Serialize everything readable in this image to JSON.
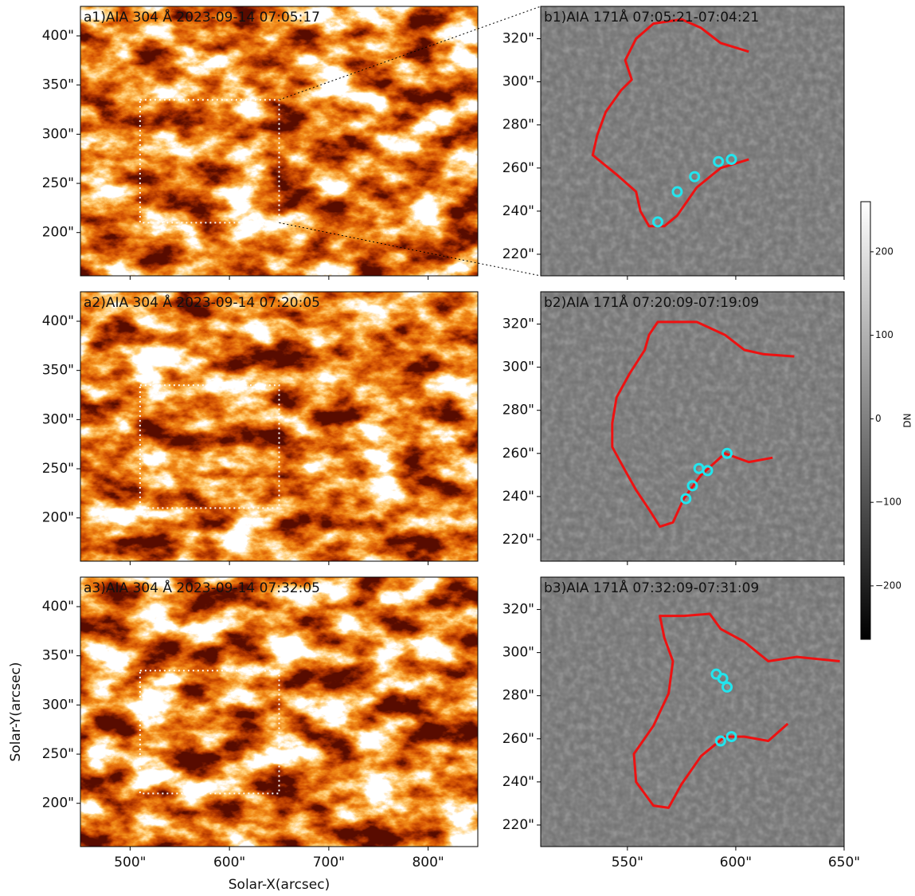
{
  "chart_data": [
    {
      "type": "image",
      "title": "a1)AIA 304 Å 2023-09-14 07:05:17",
      "cmap": "sdoaia304",
      "title_color": "#ffffff",
      "xlim": [
        450,
        850
      ],
      "ylim": [
        156,
        430
      ],
      "yticks": [
        {
          "value": 200,
          "label": "200\""
        },
        {
          "value": 250,
          "label": "250\""
        },
        {
          "value": 300,
          "label": "300\""
        },
        {
          "value": 350,
          "label": "350\""
        },
        {
          "value": 400,
          "label": "400\""
        }
      ]
    },
    {
      "type": "image",
      "title": "a2)AIA 304 Å 2023-09-14 07:20:05",
      "cmap": "sdoaia304",
      "title_color": "#ffffff",
      "xlim": [
        450,
        850
      ],
      "ylim": [
        156,
        430
      ],
      "yticks": [
        {
          "value": 200,
          "label": "200\""
        },
        {
          "value": 250,
          "label": "250\""
        },
        {
          "value": 300,
          "label": "300\""
        },
        {
          "value": 350,
          "label": "350\""
        },
        {
          "value": 400,
          "label": "400\""
        }
      ]
    },
    {
      "type": "image",
      "title": "a3)AIA 304 Å 2023-09-14 07:32:05",
      "cmap": "sdoaia304",
      "title_color": "#ffffff",
      "xlim": [
        450,
        850
      ],
      "ylim": [
        156,
        430
      ],
      "x_label": "Solar-X(arcsec)",
      "y_label": "Solar-Y(arcsec)",
      "xticks": [
        {
          "value": 500,
          "label": "500\""
        },
        {
          "value": 600,
          "label": "600\""
        },
        {
          "value": 700,
          "label": "700\""
        },
        {
          "value": 800,
          "label": "800\""
        }
      ],
      "yticks": [
        {
          "value": 200,
          "label": "200\""
        },
        {
          "value": 250,
          "label": "250\""
        },
        {
          "value": 300,
          "label": "300\""
        },
        {
          "value": 350,
          "label": "350\""
        },
        {
          "value": 400,
          "label": "400\""
        }
      ]
    },
    {
      "type": "image",
      "title": "b1)AIA 171Å 07:05:21-07:04:21",
      "cmap": "gray",
      "title_color": "#000000",
      "xlim": [
        510,
        650
      ],
      "ylim": [
        210,
        335
      ],
      "yticks": [
        {
          "value": 220,
          "label": "220\""
        },
        {
          "value": 240,
          "label": "240\""
        },
        {
          "value": 260,
          "label": "260\""
        },
        {
          "value": 280,
          "label": "280\""
        },
        {
          "value": 300,
          "label": "300\""
        },
        {
          "value": 320,
          "label": "320\""
        }
      ],
      "series": [
        {
          "type": "line",
          "color": "#ee1111",
          "x": [
            606,
            593,
            584,
            575,
            562,
            554,
            549,
            552,
            547,
            540,
            536,
            534,
            545,
            554,
            556,
            560,
            567,
            573,
            582,
            593,
            606
          ],
          "y": [
            314,
            318,
            325,
            329,
            327,
            320,
            310,
            301,
            296,
            286,
            275,
            266,
            257,
            249,
            240,
            233,
            233,
            238,
            251,
            260,
            264
          ]
        },
        {
          "type": "scatter",
          "color": "#22e5ee",
          "x": [
            564,
            573,
            581,
            592,
            598
          ],
          "y": [
            235,
            249,
            256,
            263,
            264
          ]
        }
      ]
    },
    {
      "type": "image",
      "title": "b2)AIA 171Å 07:20:09-07:19:09",
      "cmap": "gray",
      "title_color": "#000000",
      "xlim": [
        510,
        650
      ],
      "ylim": [
        210,
        335
      ],
      "yticks": [
        {
          "value": 220,
          "label": "220\""
        },
        {
          "value": 240,
          "label": "240\""
        },
        {
          "value": 260,
          "label": "260\""
        },
        {
          "value": 280,
          "label": "280\""
        },
        {
          "value": 300,
          "label": "300\""
        },
        {
          "value": 320,
          "label": "320\""
        }
      ],
      "series": [
        {
          "type": "line",
          "color": "#ee1111",
          "x": [
            627,
            613,
            604,
            595,
            582,
            564,
            560,
            558,
            551,
            545,
            543,
            543,
            549,
            554,
            560,
            565,
            571,
            576,
            584,
            595,
            606,
            617
          ],
          "y": [
            305,
            306,
            308,
            315,
            321,
            321,
            315,
            308,
            297,
            286,
            274,
            263,
            252,
            243,
            234,
            226,
            228,
            239,
            250,
            260,
            256,
            258
          ]
        },
        {
          "type": "scatter",
          "color": "#22e5ee",
          "x": [
            577,
            580,
            583,
            587,
            596
          ],
          "y": [
            239,
            245,
            253,
            252,
            260
          ]
        }
      ]
    },
    {
      "type": "image",
      "title": "b3)AIA 171Å 07:32:09-07:31:09",
      "cmap": "gray",
      "title_color": "#000000",
      "xlim": [
        510,
        650
      ],
      "ylim": [
        210,
        335
      ],
      "xticks": [
        {
          "value": 550,
          "label": "550\""
        },
        {
          "value": 600,
          "label": "600\""
        },
        {
          "value": 650,
          "label": "650\""
        }
      ],
      "yticks": [
        {
          "value": 220,
          "label": "220\""
        },
        {
          "value": 240,
          "label": "240\""
        },
        {
          "value": 260,
          "label": "260\""
        },
        {
          "value": 280,
          "label": "280\""
        },
        {
          "value": 300,
          "label": "300\""
        },
        {
          "value": 320,
          "label": "320\""
        }
      ],
      "series": [
        {
          "type": "line",
          "color": "#ee1111",
          "x": [
            648,
            628,
            615,
            604,
            593,
            588,
            576,
            565,
            567,
            571,
            569,
            562,
            553,
            554,
            562,
            569,
            575,
            584,
            595,
            604,
            615,
            624
          ],
          "y": [
            296,
            298,
            296,
            305,
            311,
            318,
            317,
            317,
            307,
            296,
            281,
            266,
            253,
            240,
            229,
            228,
            239,
            252,
            261,
            261,
            259,
            267
          ]
        },
        {
          "type": "scatter",
          "color": "#22e5ee",
          "x": [
            591,
            594,
            596,
            593,
            598
          ],
          "y": [
            290,
            288,
            284,
            259,
            261
          ]
        }
      ]
    }
  ],
  "colorbar": {
    "label": "DN",
    "clim": [
      -264,
      260
    ],
    "ticks": [
      {
        "value": 200,
        "label": "200"
      },
      {
        "value": 100,
        "label": "100"
      },
      {
        "value": 0,
        "label": "0"
      },
      {
        "value": -100,
        "label": "−100"
      },
      {
        "value": -200,
        "label": "−200"
      }
    ]
  }
}
